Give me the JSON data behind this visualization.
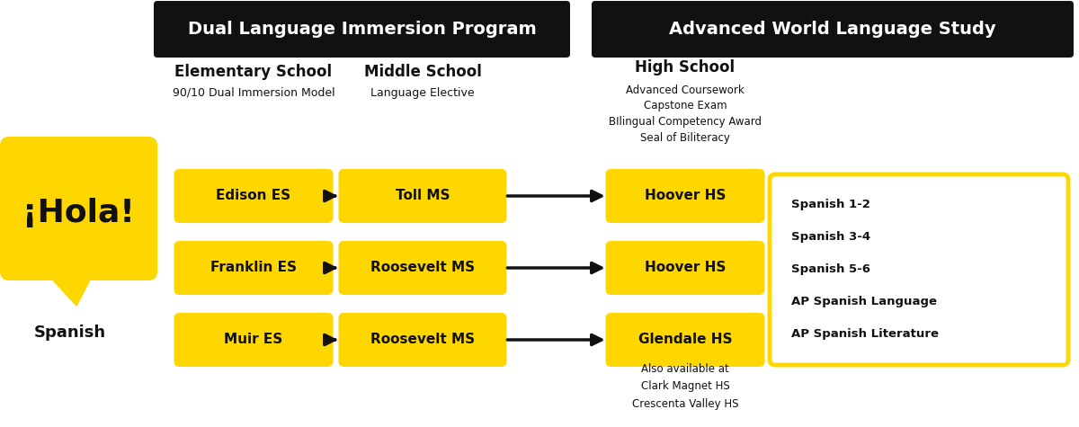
{
  "bg_color": "#ffffff",
  "yellow": "#FFD700",
  "black": "#111111",
  "white": "#ffffff",
  "header1_text": "Dual Language Immersion Program",
  "header2_text": "Advanced World Language Study",
  "col1_title": "Elementary School",
  "col1_sub": "90/10 Dual Immersion Model",
  "col2_title": "Middle School",
  "col2_sub": "Language Elective",
  "col3_title": "High School",
  "col3_sub": [
    "Advanced Coursework",
    "Capstone Exam",
    "BIlingual Competency Award",
    "Seal of Biliteracy"
  ],
  "hola_text": "¡Hola!",
  "spanish_text": "Spanish",
  "rows": [
    {
      "es": "Edison ES",
      "ms": "Toll MS",
      "hs": "Hoover HS"
    },
    {
      "es": "Franklin ES",
      "ms": "Roosevelt MS",
      "hs": "Hoover HS"
    },
    {
      "es": "Muir ES",
      "ms": "Roosevelt MS",
      "hs": "Glendale HS"
    }
  ],
  "courses": [
    "Spanish 1-2",
    "Spanish 3-4",
    "Spanish 5-6",
    "AP Spanish Language",
    "AP Spanish Literature"
  ],
  "also_text": [
    "Also available at",
    "Clark Magnet HS",
    "Crescenta Valley HS"
  ],
  "figw": 12.0,
  "figh": 4.75,
  "dpi": 100
}
